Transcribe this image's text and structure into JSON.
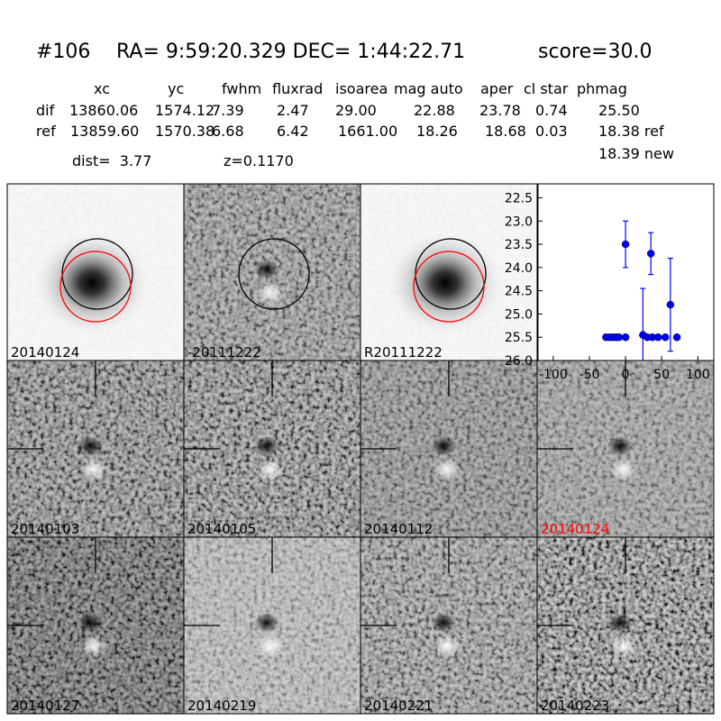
{
  "header": {
    "id": "#106",
    "coords": "RA= 9:59:20.329 DEC= 1:44:22.71",
    "score": "score=30.0"
  },
  "table": {
    "columns": [
      "xc",
      "yc",
      "fwhm",
      "fluxrad",
      "isoarea",
      "mag auto",
      "aper",
      "cl star",
      "phmag"
    ],
    "rows": [
      {
        "label": "dif",
        "cells": [
          "13860.06",
          "1574.12",
          "7.39",
          "2.47",
          "29.00",
          "22.88",
          "23.78",
          "0.74",
          "25.50"
        ]
      },
      {
        "label": "ref",
        "cells": [
          "13859.60",
          "1570.38",
          "6.68",
          "6.42",
          "1661.00",
          "18.26",
          "18.68",
          "0.03",
          "18.38 ref"
        ]
      }
    ],
    "extra": "18.39 new"
  },
  "dist": "dist=  3.77",
  "z": "z=0.1170",
  "panels": [
    "20140124",
    "-20111222",
    "R20111222",
    "20140103",
    "20140105",
    "20140112",
    "20140124",
    "20140127",
    "20140219",
    "20140221",
    "20140223"
  ],
  "chart_data": {
    "type": "scatter",
    "color": "#0000ff",
    "x": [
      -27,
      -22,
      -17,
      -13,
      -9,
      0,
      0,
      24,
      30,
      35,
      37,
      45,
      55,
      62,
      71
    ],
    "values": [
      25.5,
      25.5,
      25.5,
      25.5,
      25.5,
      25.5,
      23.5,
      25.45,
      25.5,
      23.7,
      25.5,
      25.5,
      25.5,
      24.8,
      25.5
    ],
    "errors": [
      0.05,
      0.05,
      0.05,
      0.05,
      0.05,
      0.05,
      0.5,
      1.0,
      0.05,
      0.45,
      0.05,
      0.05,
      0.05,
      1.0,
      0.05
    ],
    "xlim": [
      -121,
      122
    ],
    "ylim": [
      22.2,
      26
    ],
    "y_inverted": true,
    "xticks": [
      -100,
      -50,
      0,
      50,
      100
    ],
    "yticks": [
      22.5,
      {
        "value": 23,
        "label": "23.0"
      },
      23.5,
      {
        "value": 24,
        "label": "24.0"
      },
      24.5,
      {
        "value": 25,
        "label": "25.0"
      },
      25.5,
      {
        "value": 26,
        "label": "26.0"
      }
    ]
  }
}
